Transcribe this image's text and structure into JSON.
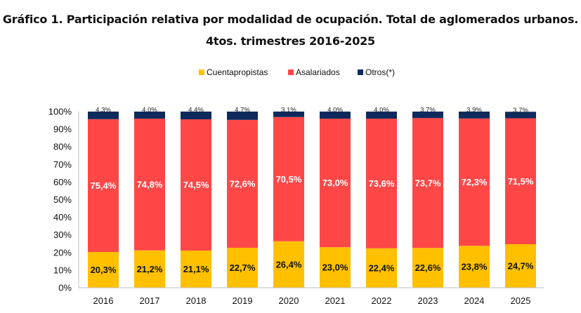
{
  "chart_data": {
    "type": "bar",
    "stacked": true,
    "title_line1": "Gráfico 1. Participación relativa por modalidad de ocupación. Total de aglomerados urbanos.",
    "title_line2": "4tos. trimestres 2016-2025",
    "categories": [
      "2016",
      "2017",
      "2018",
      "2019",
      "2020",
      "2021",
      "2022",
      "2023",
      "2024",
      "2025"
    ],
    "ylim": [
      0,
      100
    ],
    "yticks": [
      "0%",
      "10%",
      "20%",
      "30%",
      "40%",
      "50%",
      "60%",
      "70%",
      "80%",
      "90%",
      "100%"
    ],
    "legend_position": "top-center",
    "grid": false,
    "series": [
      {
        "name": "Cuentapropistas",
        "color": "#FFC000",
        "values": [
          20.3,
          21.2,
          21.1,
          22.7,
          26.4,
          23.0,
          22.4,
          22.6,
          23.8,
          24.7
        ],
        "labels": [
          "20,3%",
          "21,2%",
          "21,1%",
          "22,7%",
          "26,4%",
          "23,0%",
          "22,4%",
          "22,6%",
          "23,8%",
          "24,7%"
        ]
      },
      {
        "name": "Asalariados",
        "color": "#FF4747",
        "values": [
          75.4,
          74.8,
          74.5,
          72.6,
          70.5,
          73.0,
          73.6,
          73.7,
          72.3,
          71.5
        ],
        "labels": [
          "75,4%",
          "74,8%",
          "74,5%",
          "72,6%",
          "70,5%",
          "73,0%",
          "73,6%",
          "73,7%",
          "72,3%",
          "71,5%"
        ]
      },
      {
        "name": "Otros(*)",
        "color": "#0E2A5C",
        "values": [
          4.3,
          4.0,
          4.4,
          4.7,
          3.1,
          4.0,
          4.0,
          3.7,
          3.9,
          3.7
        ],
        "labels": [
          "4,3%",
          "4,0%",
          "4,4%",
          "4,7%",
          "3,1%",
          "4,0%",
          "4,0%",
          "3,7%",
          "3,9%",
          "3,7%"
        ]
      }
    ]
  }
}
